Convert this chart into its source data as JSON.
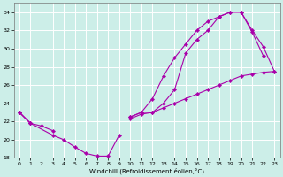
{
  "xlabel": "Windchill (Refroidissement éolien,°C)",
  "background_color": "#cceee8",
  "grid_color": "#ffffff",
  "line_color": "#aa00aa",
  "line1_x": [
    0,
    1,
    3,
    4,
    5,
    6,
    7,
    8,
    9
  ],
  "line1_y": [
    23.0,
    21.8,
    20.5,
    20.0,
    19.2,
    18.5,
    18.2,
    18.2,
    20.5
  ],
  "line2_x": [
    0,
    1,
    10,
    11,
    12,
    13,
    14,
    15,
    16,
    17,
    18,
    19,
    20,
    21,
    22
  ],
  "line2_y": [
    23.0,
    21.8,
    22.5,
    23.0,
    24.5,
    27.0,
    29.0,
    30.5,
    32.0,
    33.0,
    33.5,
    34.0,
    34.0,
    31.8,
    29.2
  ],
  "line3_x": [
    0,
    10,
    11,
    12,
    13,
    14,
    15,
    16,
    17,
    18,
    19,
    20,
    21,
    22,
    23
  ],
  "line3_y": [
    23.0,
    22.3,
    22.8,
    23.0,
    24.0,
    25.5,
    29.5,
    31.0,
    32.0,
    33.5,
    34.0,
    34.0,
    32.0,
    30.2,
    27.5
  ],
  "line4_x": [
    0,
    1,
    2,
    3,
    10,
    11,
    12,
    13,
    14,
    15,
    16,
    17,
    18,
    19,
    20,
    21,
    22,
    23
  ],
  "line4_y": [
    23.0,
    21.8,
    21.5,
    21.0,
    22.5,
    23.0,
    23.0,
    23.5,
    24.0,
    24.5,
    25.0,
    25.5,
    26.0,
    26.5,
    27.0,
    27.2,
    27.4,
    27.5
  ],
  "ylim": [
    18,
    35
  ],
  "xlim": [
    -0.5,
    23.5
  ],
  "yticks": [
    18,
    20,
    22,
    24,
    26,
    28,
    30,
    32,
    34
  ],
  "xticks": [
    0,
    1,
    2,
    3,
    4,
    5,
    6,
    7,
    8,
    9,
    10,
    11,
    12,
    13,
    14,
    15,
    16,
    17,
    18,
    19,
    20,
    21,
    22,
    23
  ]
}
